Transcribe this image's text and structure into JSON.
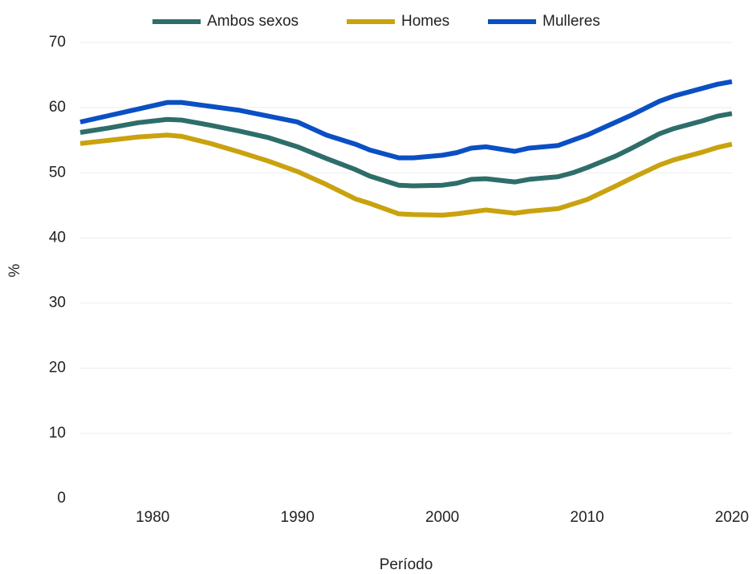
{
  "chart_data": {
    "type": "line",
    "x": [
      1975,
      1977,
      1979,
      1981,
      1982,
      1984,
      1986,
      1988,
      1990,
      1992,
      1994,
      1995,
      1997,
      1998,
      2000,
      2001,
      2002,
      2003,
      2005,
      2006,
      2008,
      2009,
      2010,
      2012,
      2013,
      2015,
      2016,
      2018,
      2019,
      2020
    ],
    "series": [
      {
        "name": "Ambos sexos",
        "color": "#2e6e6a",
        "values": [
          56.2,
          56.9,
          57.7,
          58.2,
          58.1,
          57.3,
          56.4,
          55.4,
          54.0,
          52.2,
          50.5,
          49.5,
          48.1,
          48.0,
          48.1,
          48.4,
          49.0,
          49.1,
          48.6,
          49.0,
          49.4,
          50.0,
          50.8,
          52.6,
          53.7,
          56.0,
          56.8,
          58.0,
          58.7,
          59.1
        ]
      },
      {
        "name": "Homes",
        "color": "#c9a20e",
        "values": [
          54.5,
          55.0,
          55.5,
          55.8,
          55.6,
          54.5,
          53.2,
          51.8,
          50.2,
          48.2,
          46.0,
          45.3,
          43.7,
          43.6,
          43.5,
          43.7,
          44.0,
          44.3,
          43.8,
          44.1,
          44.5,
          45.2,
          45.9,
          48.0,
          49.1,
          51.2,
          52.0,
          53.2,
          53.9,
          54.4
        ]
      },
      {
        "name": "Mulleres",
        "color": "#0a4fc4",
        "values": [
          57.8,
          58.8,
          59.8,
          60.8,
          60.8,
          60.2,
          59.6,
          58.7,
          57.8,
          55.8,
          54.4,
          53.5,
          52.3,
          52.3,
          52.7,
          53.1,
          53.8,
          54.0,
          53.3,
          53.8,
          54.2,
          55.0,
          55.8,
          57.8,
          58.8,
          61.0,
          61.8,
          63.0,
          63.6,
          64.0
        ]
      }
    ],
    "x_label": "Período",
    "y_label": "%",
    "xlim": [
      1975,
      2020
    ],
    "xticks": [
      1980,
      1990,
      2000,
      2010,
      2020
    ],
    "ylim": [
      0,
      70
    ],
    "yticks": [
      0,
      10,
      20,
      30,
      40,
      50,
      60,
      70
    ],
    "grid": true,
    "legend": "top"
  }
}
